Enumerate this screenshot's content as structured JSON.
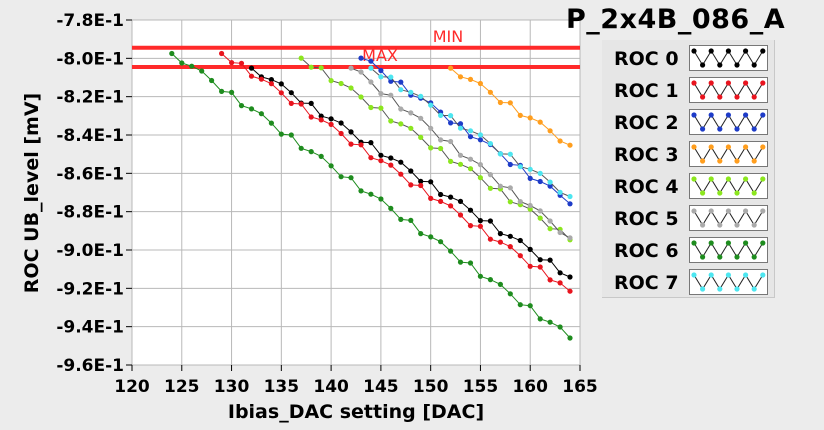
{
  "title": "P_2x4B_086_A",
  "chart_data": {
    "type": "line",
    "xlabel": "Ibias_DAC setting [DAC]",
    "ylabel": "ROC UB_level [mV]",
    "xlim": [
      120,
      165
    ],
    "ylim": [
      -0.96,
      -0.78
    ],
    "xticks": [
      120,
      125,
      130,
      135,
      140,
      145,
      150,
      155,
      160,
      165
    ],
    "xtick_labels": [
      "120",
      "125",
      "130",
      "135",
      "140",
      "145",
      "150",
      "155",
      "160",
      "165"
    ],
    "yticks": [
      -0.96,
      -0.94,
      -0.92,
      -0.9,
      -0.88,
      -0.86,
      -0.84,
      -0.82,
      -0.8,
      -0.78
    ],
    "ytick_labels": [
      "-9.6E-1",
      "-9.4E-1",
      "-9.2E-1",
      "-9.0E-1",
      "-8.8E-1",
      "-8.6E-1",
      "-8.4E-1",
      "-8.2E-1",
      "-8.0E-1",
      "-7.8E-1"
    ],
    "grid": true,
    "legend_position": "right",
    "reference_lines": [
      {
        "label": "MIN",
        "y": -0.7945,
        "color": "#ff2a2a"
      },
      {
        "label": "MAX",
        "y": -0.8045,
        "color": "#ff2a2a"
      }
    ],
    "series": [
      {
        "name": "ROC 0",
        "color": "#000000",
        "x_start": 132,
        "x_end": 164,
        "y_start": -0.8051,
        "y_end": -0.9141
      },
      {
        "name": "ROC 1",
        "color": "#e8141e",
        "x_start": 129,
        "x_end": 164,
        "y_start": -0.7975,
        "y_end": -0.9215
      },
      {
        "name": "ROC 2",
        "color": "#1e3cc8",
        "x_start": 143,
        "x_end": 164,
        "y_start": -0.7999,
        "y_end": -0.8759
      },
      {
        "name": "ROC 3",
        "color": "#ff9e1e",
        "x_start": 152,
        "x_end": 164,
        "y_start": -0.8051,
        "y_end": -0.8453
      },
      {
        "name": "ROC 4",
        "color": "#8ce61e",
        "x_start": 137,
        "x_end": 164,
        "y_start": -0.7999,
        "y_end": -0.8947
      },
      {
        "name": "ROC 5",
        "color": "#aaaaaa",
        "x_start": 142,
        "x_end": 164,
        "y_start": -0.8051,
        "y_end": -0.8937
      },
      {
        "name": "ROC 6",
        "color": "#1e8c1e",
        "x_start": 124,
        "x_end": 164,
        "y_start": -0.7975,
        "y_end": -0.9459
      },
      {
        "name": "ROC 7",
        "color": "#4de6f0",
        "x_start": 144,
        "x_end": 164,
        "y_start": -0.8051,
        "y_end": -0.8721
      }
    ]
  }
}
